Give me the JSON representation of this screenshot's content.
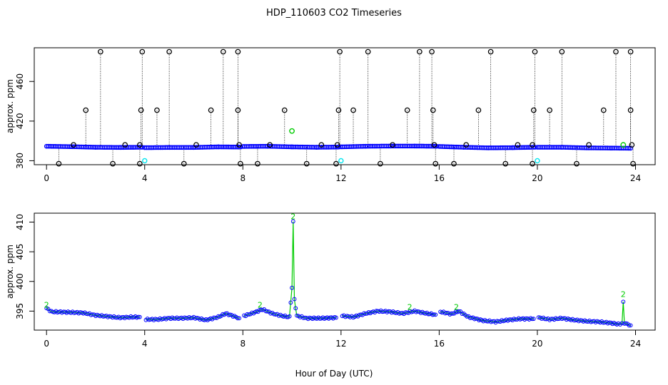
{
  "title": "HDP_110603  CO2 Timeseries",
  "xlabel": "Hour of Day (UTC)",
  "colors": {
    "spike_marker": "#000000",
    "series_main": "#0000ff",
    "flag_green": "#00cc00",
    "flag_cyan": "#00e5ee",
    "spike_line": "#000000"
  },
  "chart_data": [
    {
      "type": "scatter",
      "panel": "top",
      "ylabel": "approx. ppm",
      "xlim": [
        -0.5,
        24.8
      ],
      "ylim": [
        376,
        494
      ],
      "xticks": [
        0,
        4,
        8,
        12,
        16,
        20,
        24
      ],
      "xtick_labels": [
        "0",
        "4",
        "8",
        "12",
        "16",
        "20",
        "24"
      ],
      "yticks": [
        380,
        420,
        460
      ],
      "ytick_labels": [
        "380",
        "420",
        "460"
      ],
      "baseline": [
        [
          0.0,
          394.6
        ],
        [
          1.0,
          394.2
        ],
        [
          2.0,
          393.6
        ],
        [
          3.0,
          393.4
        ],
        [
          3.9,
          393.6
        ],
        [
          4.0,
          393.2
        ],
        [
          5.0,
          393.4
        ],
        [
          6.0,
          393.4
        ],
        [
          7.0,
          394.0
        ],
        [
          7.9,
          393.8
        ],
        [
          8.0,
          394.4
        ],
        [
          9.0,
          394.6
        ],
        [
          10.0,
          394.0
        ],
        [
          11.0,
          393.6
        ],
        [
          11.9,
          393.8
        ],
        [
          12.0,
          394.0
        ],
        [
          13.0,
          394.6
        ],
        [
          14.0,
          394.8
        ],
        [
          15.0,
          394.8
        ],
        [
          15.9,
          394.6
        ],
        [
          16.0,
          394.4
        ],
        [
          17.0,
          393.6
        ],
        [
          18.0,
          393.0
        ],
        [
          19.0,
          393.2
        ],
        [
          19.9,
          393.6
        ],
        [
          20.0,
          393.6
        ],
        [
          21.0,
          393.6
        ],
        [
          22.0,
          393.0
        ],
        [
          23.0,
          392.8
        ],
        [
          23.8,
          392.6
        ]
      ],
      "spikes": [
        {
          "x": 0.5,
          "y": 377
        },
        {
          "x": 1.1,
          "y": 396
        },
        {
          "x": 1.6,
          "y": 431
        },
        {
          "x": 2.2,
          "y": 490
        },
        {
          "x": 2.7,
          "y": 377
        },
        {
          "x": 3.2,
          "y": 396
        },
        {
          "x": 3.8,
          "y": 377
        },
        {
          "x": 3.8,
          "y": 396
        },
        {
          "x": 3.85,
          "y": 431
        },
        {
          "x": 3.9,
          "y": 490
        },
        {
          "x": 4.5,
          "y": 431
        },
        {
          "x": 5.0,
          "y": 490
        },
        {
          "x": 5.6,
          "y": 377
        },
        {
          "x": 6.1,
          "y": 396
        },
        {
          "x": 6.7,
          "y": 431
        },
        {
          "x": 7.2,
          "y": 490
        },
        {
          "x": 7.8,
          "y": 490
        },
        {
          "x": 7.8,
          "y": 431
        },
        {
          "x": 7.85,
          "y": 396
        },
        {
          "x": 7.9,
          "y": 377
        },
        {
          "x": 8.6,
          "y": 377
        },
        {
          "x": 9.1,
          "y": 396
        },
        {
          "x": 9.7,
          "y": 431
        },
        {
          "x": 10.6,
          "y": 377
        },
        {
          "x": 11.2,
          "y": 396
        },
        {
          "x": 11.8,
          "y": 377
        },
        {
          "x": 11.85,
          "y": 396
        },
        {
          "x": 11.9,
          "y": 431
        },
        {
          "x": 11.95,
          "y": 490
        },
        {
          "x": 12.5,
          "y": 431
        },
        {
          "x": 13.1,
          "y": 490
        },
        {
          "x": 13.6,
          "y": 377
        },
        {
          "x": 14.1,
          "y": 396
        },
        {
          "x": 14.7,
          "y": 431
        },
        {
          "x": 15.2,
          "y": 490
        },
        {
          "x": 15.7,
          "y": 490
        },
        {
          "x": 15.75,
          "y": 431
        },
        {
          "x": 15.8,
          "y": 396
        },
        {
          "x": 15.85,
          "y": 377
        },
        {
          "x": 16.6,
          "y": 377
        },
        {
          "x": 17.1,
          "y": 396
        },
        {
          "x": 17.6,
          "y": 431
        },
        {
          "x": 18.1,
          "y": 490
        },
        {
          "x": 18.7,
          "y": 377
        },
        {
          "x": 19.2,
          "y": 396
        },
        {
          "x": 19.8,
          "y": 377
        },
        {
          "x": 19.8,
          "y": 396
        },
        {
          "x": 19.85,
          "y": 431
        },
        {
          "x": 19.9,
          "y": 490
        },
        {
          "x": 20.5,
          "y": 431
        },
        {
          "x": 21.0,
          "y": 490
        },
        {
          "x": 21.6,
          "y": 377
        },
        {
          "x": 22.1,
          "y": 396
        },
        {
          "x": 22.7,
          "y": 431
        },
        {
          "x": 23.2,
          "y": 490
        },
        {
          "x": 23.8,
          "y": 490
        },
        {
          "x": 23.8,
          "y": 431
        },
        {
          "x": 23.85,
          "y": 396
        },
        {
          "x": 23.9,
          "y": 377
        }
      ],
      "flag_green_points": [
        {
          "x": 10.0,
          "y": 410
        },
        {
          "x": 23.5,
          "y": 396
        }
      ],
      "flag_cyan_points": [
        {
          "x": 4.0,
          "y": 380
        },
        {
          "x": 12.0,
          "y": 380
        },
        {
          "x": 20.0,
          "y": 380
        }
      ]
    },
    {
      "type": "scatter",
      "panel": "bottom",
      "ylabel": "approx. ppm",
      "xlim": [
        -0.5,
        24.8
      ],
      "ylim": [
        391.8,
        411.5
      ],
      "xticks": [
        0,
        4,
        8,
        12,
        16,
        20,
        24
      ],
      "xtick_labels": [
        "0",
        "4",
        "8",
        "12",
        "16",
        "20",
        "24"
      ],
      "yticks": [
        395,
        400,
        405,
        410
      ],
      "ytick_labels": [
        "395",
        "400",
        "405",
        "410"
      ],
      "segments": [
        [
          [
            0.0,
            395.5
          ],
          [
            0.2,
            394.9
          ],
          [
            1.0,
            394.8
          ],
          [
            1.5,
            394.7
          ],
          [
            2.0,
            394.3
          ],
          [
            2.5,
            394.1
          ],
          [
            3.0,
            393.9
          ],
          [
            3.5,
            394.0
          ],
          [
            3.8,
            394.0
          ]
        ],
        [
          [
            4.05,
            393.6
          ],
          [
            4.5,
            393.6
          ],
          [
            5.0,
            393.8
          ],
          [
            5.5,
            393.8
          ],
          [
            6.0,
            393.9
          ],
          [
            6.5,
            393.5
          ],
          [
            7.0,
            394.0
          ],
          [
            7.3,
            394.6
          ],
          [
            7.6,
            394.2
          ],
          [
            7.85,
            393.8
          ]
        ],
        [
          [
            8.05,
            394.2
          ],
          [
            8.5,
            394.8
          ],
          [
            8.8,
            395.3
          ],
          [
            9.2,
            394.6
          ],
          [
            9.6,
            394.2
          ],
          [
            9.9,
            394.0
          ],
          [
            10.0,
            399.0
          ],
          [
            10.05,
            410.0
          ],
          [
            10.1,
            397.0
          ],
          [
            10.2,
            394.2
          ],
          [
            10.6,
            393.8
          ],
          [
            11.2,
            393.8
          ],
          [
            11.8,
            393.9
          ]
        ],
        [
          [
            12.05,
            394.2
          ],
          [
            12.5,
            394.0
          ],
          [
            13.0,
            394.6
          ],
          [
            13.5,
            395.0
          ],
          [
            14.0,
            394.9
          ],
          [
            14.5,
            394.6
          ],
          [
            15.0,
            395.0
          ],
          [
            15.5,
            394.6
          ],
          [
            15.85,
            394.4
          ]
        ],
        [
          [
            16.05,
            394.9
          ],
          [
            16.5,
            394.5
          ],
          [
            16.8,
            395.0
          ],
          [
            17.2,
            394.0
          ],
          [
            17.8,
            393.4
          ],
          [
            18.3,
            393.2
          ],
          [
            18.8,
            393.5
          ],
          [
            19.3,
            393.7
          ],
          [
            19.85,
            393.7
          ]
        ],
        [
          [
            20.05,
            393.9
          ],
          [
            20.5,
            393.6
          ],
          [
            21.0,
            393.8
          ],
          [
            21.5,
            393.5
          ],
          [
            22.0,
            393.3
          ],
          [
            22.5,
            393.2
          ],
          [
            23.0,
            393.0
          ],
          [
            23.3,
            392.8
          ],
          [
            23.45,
            392.9
          ],
          [
            23.5,
            396.5
          ],
          [
            23.55,
            393.0
          ],
          [
            23.8,
            392.6
          ]
        ]
      ],
      "labels": [
        {
          "x": 10.05,
          "y": 410.5,
          "text": "2"
        },
        {
          "x": 23.5,
          "y": 397.4,
          "text": "2"
        },
        {
          "x": 0.0,
          "y": 395.6,
          "text": "2"
        },
        {
          "x": 8.7,
          "y": 395.6,
          "text": "2"
        },
        {
          "x": 14.8,
          "y": 395.2,
          "text": "2"
        },
        {
          "x": 16.7,
          "y": 395.2,
          "text": "2"
        }
      ]
    }
  ]
}
